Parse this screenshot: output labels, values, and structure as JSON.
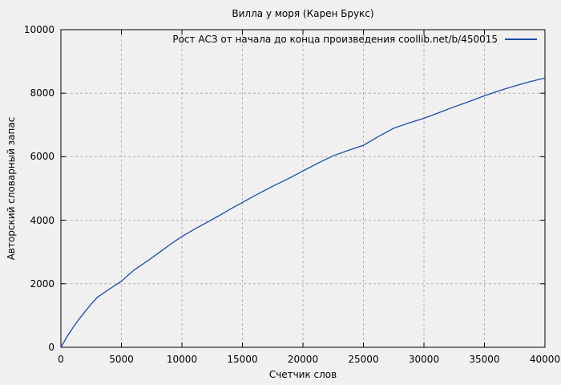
{
  "figure": {
    "background": "#f0f0f0",
    "frame_color": "#000000",
    "grid_color": "#b0b0b0",
    "text_color": "#000000"
  },
  "chart_data": {
    "type": "line",
    "title": "Вилла у моря (Карен Брукс)",
    "xlabel": "Счетчик слов",
    "ylabel": "Авторский словарный запас",
    "xlim": [
      0,
      40000
    ],
    "ylim": [
      0,
      10000
    ],
    "xticks": [
      0,
      5000,
      10000,
      15000,
      20000,
      25000,
      30000,
      35000,
      40000
    ],
    "yticks": [
      0,
      2000,
      4000,
      6000,
      8000,
      10000
    ],
    "grid": "dashed gray at major ticks",
    "legend_position": "top-center-right, no box",
    "series": [
      {
        "name": "Рост АСЗ от начала до конца произведения coollib.net/b/450015",
        "color": "#1d4ba5",
        "x": [
          0,
          500,
          1000,
          1500,
          2000,
          2500,
          3000,
          4000,
          5000,
          6000,
          7000,
          8000,
          9000,
          10000,
          11000,
          12000,
          13000,
          14000,
          15000,
          16000,
          17500,
          18750,
          20000,
          21250,
          22500,
          23750,
          25000,
          26250,
          27500,
          28750,
          30000,
          31250,
          32500,
          33750,
          35000,
          36250,
          37500,
          38750,
          40000
        ],
        "y": [
          0,
          330,
          620,
          890,
          1130,
          1360,
          1570,
          1830,
          2080,
          2420,
          2680,
          2950,
          3230,
          3490,
          3710,
          3920,
          4130,
          4350,
          4560,
          4770,
          5070,
          5300,
          5550,
          5800,
          6030,
          6200,
          6360,
          6640,
          6900,
          7060,
          7210,
          7390,
          7570,
          7740,
          7920,
          8080,
          8230,
          8360,
          8480
        ]
      }
    ]
  }
}
